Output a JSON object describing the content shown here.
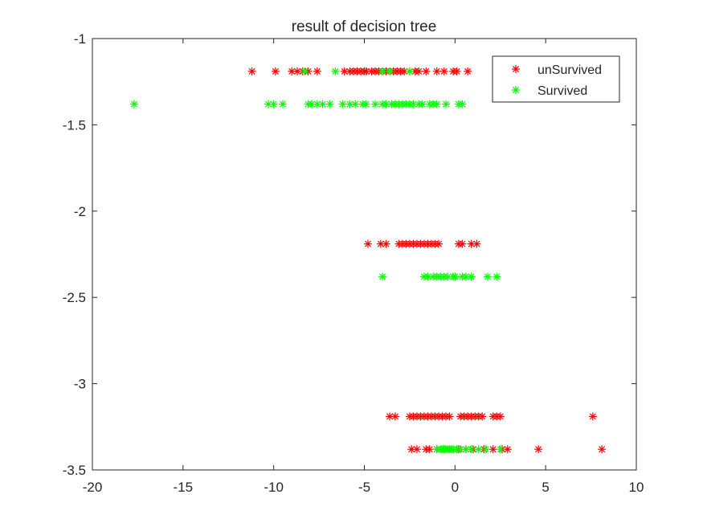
{
  "chart_data": {
    "type": "scatter",
    "title": "result of decision tree",
    "xlabel": "",
    "ylabel": "",
    "xlim": [
      -20,
      10
    ],
    "ylim": [
      -3.5,
      -1
    ],
    "xticks": [
      "-20",
      "-15",
      "-10",
      "-5",
      "0",
      "5",
      "10"
    ],
    "yticks": [
      "-1",
      "-1.5",
      "-2",
      "-2.5",
      "-3",
      "-3.5"
    ],
    "grid": false,
    "legend_position": "top-right",
    "marker": "asterisk",
    "series": [
      {
        "name": "unSurvived",
        "color": "#ff0000",
        "points": [
          [
            -11.2,
            -1.19
          ],
          [
            -9.9,
            -1.19
          ],
          [
            -9.0,
            -1.19
          ],
          [
            -8.7,
            -1.19
          ],
          [
            -8.4,
            -1.19
          ],
          [
            -8.1,
            -1.19
          ],
          [
            -7.6,
            -1.19
          ],
          [
            -6.1,
            -1.19
          ],
          [
            -5.8,
            -1.19
          ],
          [
            -5.6,
            -1.19
          ],
          [
            -5.4,
            -1.19
          ],
          [
            -5.2,
            -1.19
          ],
          [
            -5.0,
            -1.19
          ],
          [
            -4.9,
            -1.19
          ],
          [
            -4.6,
            -1.19
          ],
          [
            -4.4,
            -1.19
          ],
          [
            -4.2,
            -1.19
          ],
          [
            -4.0,
            -1.19
          ],
          [
            -3.8,
            -1.19
          ],
          [
            -3.6,
            -1.19
          ],
          [
            -3.4,
            -1.19
          ],
          [
            -3.2,
            -1.19
          ],
          [
            -3.0,
            -1.19
          ],
          [
            -2.8,
            -1.19
          ],
          [
            -2.5,
            -1.19
          ],
          [
            -2.2,
            -1.19
          ],
          [
            -2.0,
            -1.19
          ],
          [
            -1.6,
            -1.19
          ],
          [
            -1.0,
            -1.19
          ],
          [
            -0.6,
            -1.19
          ],
          [
            -0.1,
            -1.19
          ],
          [
            0.1,
            -1.19
          ],
          [
            0.7,
            -1.19
          ],
          [
            -4.8,
            -2.19
          ],
          [
            -4.1,
            -2.19
          ],
          [
            -3.8,
            -2.19
          ],
          [
            -3.1,
            -2.19
          ],
          [
            -2.9,
            -2.19
          ],
          [
            -2.7,
            -2.19
          ],
          [
            -2.5,
            -2.19
          ],
          [
            -2.3,
            -2.19
          ],
          [
            -2.1,
            -2.19
          ],
          [
            -1.9,
            -2.19
          ],
          [
            -1.7,
            -2.19
          ],
          [
            -1.5,
            -2.19
          ],
          [
            -1.3,
            -2.19
          ],
          [
            -1.1,
            -2.19
          ],
          [
            -0.9,
            -2.19
          ],
          [
            0.2,
            -2.19
          ],
          [
            0.4,
            -2.19
          ],
          [
            0.9,
            -2.19
          ],
          [
            1.2,
            -2.19
          ],
          [
            -3.6,
            -3.19
          ],
          [
            -3.3,
            -3.19
          ],
          [
            -2.5,
            -3.19
          ],
          [
            -2.3,
            -3.19
          ],
          [
            -2.1,
            -3.19
          ],
          [
            -1.9,
            -3.19
          ],
          [
            -1.7,
            -3.19
          ],
          [
            -1.5,
            -3.19
          ],
          [
            -1.3,
            -3.19
          ],
          [
            -1.1,
            -3.19
          ],
          [
            -0.9,
            -3.19
          ],
          [
            -0.7,
            -3.19
          ],
          [
            -0.5,
            -3.19
          ],
          [
            -0.3,
            -3.19
          ],
          [
            0.3,
            -3.19
          ],
          [
            0.5,
            -3.19
          ],
          [
            0.7,
            -3.19
          ],
          [
            0.9,
            -3.19
          ],
          [
            1.1,
            -3.19
          ],
          [
            1.3,
            -3.19
          ],
          [
            1.5,
            -3.19
          ],
          [
            2.1,
            -3.19
          ],
          [
            2.3,
            -3.19
          ],
          [
            2.5,
            -3.19
          ],
          [
            7.6,
            -3.19
          ],
          [
            -2.4,
            -3.38
          ],
          [
            -2.1,
            -3.38
          ],
          [
            -1.6,
            -3.38
          ],
          [
            -1.4,
            -3.38
          ],
          [
            -1.0,
            -3.38
          ],
          [
            -0.6,
            -3.38
          ],
          [
            0.2,
            -3.38
          ],
          [
            0.6,
            -3.38
          ],
          [
            1.0,
            -3.38
          ],
          [
            1.6,
            -3.38
          ],
          [
            2.1,
            -3.38
          ],
          [
            2.6,
            -3.38
          ],
          [
            2.9,
            -3.38
          ],
          [
            4.6,
            -3.38
          ],
          [
            8.1,
            -3.38
          ]
        ]
      },
      {
        "name": "Survived",
        "color": "#00ff00",
        "points": [
          [
            -8.3,
            -1.19
          ],
          [
            -6.6,
            -1.19
          ],
          [
            -4.0,
            -1.19
          ],
          [
            -3.6,
            -1.19
          ],
          [
            -2.5,
            -1.19
          ],
          [
            -17.7,
            -1.38
          ],
          [
            -10.3,
            -1.38
          ],
          [
            -10.0,
            -1.38
          ],
          [
            -9.5,
            -1.38
          ],
          [
            -8.1,
            -1.38
          ],
          [
            -7.9,
            -1.38
          ],
          [
            -7.6,
            -1.38
          ],
          [
            -7.3,
            -1.38
          ],
          [
            -6.9,
            -1.38
          ],
          [
            -6.2,
            -1.38
          ],
          [
            -5.8,
            -1.38
          ],
          [
            -5.5,
            -1.38
          ],
          [
            -5.1,
            -1.38
          ],
          [
            -4.9,
            -1.38
          ],
          [
            -4.4,
            -1.38
          ],
          [
            -4.0,
            -1.38
          ],
          [
            -3.8,
            -1.38
          ],
          [
            -3.5,
            -1.38
          ],
          [
            -3.3,
            -1.38
          ],
          [
            -3.1,
            -1.38
          ],
          [
            -2.9,
            -1.38
          ],
          [
            -2.7,
            -1.38
          ],
          [
            -2.5,
            -1.38
          ],
          [
            -2.3,
            -1.38
          ],
          [
            -2.0,
            -1.38
          ],
          [
            -1.8,
            -1.38
          ],
          [
            -1.4,
            -1.38
          ],
          [
            -1.2,
            -1.38
          ],
          [
            -1.0,
            -1.38
          ],
          [
            -0.5,
            -1.38
          ],
          [
            0.2,
            -1.38
          ],
          [
            0.4,
            -1.38
          ],
          [
            -4.0,
            -2.38
          ],
          [
            -1.7,
            -2.38
          ],
          [
            -1.5,
            -2.38
          ],
          [
            -1.2,
            -2.38
          ],
          [
            -1.0,
            -2.38
          ],
          [
            -0.8,
            -2.38
          ],
          [
            -0.6,
            -2.38
          ],
          [
            -0.4,
            -2.38
          ],
          [
            -0.1,
            -2.38
          ],
          [
            0.0,
            -2.38
          ],
          [
            0.4,
            -2.38
          ],
          [
            0.6,
            -2.38
          ],
          [
            0.9,
            -2.38
          ],
          [
            1.8,
            -2.38
          ],
          [
            2.3,
            -2.38
          ],
          [
            -1.0,
            -3.38
          ],
          [
            -0.8,
            -3.38
          ],
          [
            -0.7,
            -3.38
          ],
          [
            -0.6,
            -3.38
          ],
          [
            -0.5,
            -3.38
          ],
          [
            -0.4,
            -3.38
          ],
          [
            -0.3,
            -3.38
          ],
          [
            -0.2,
            -3.38
          ],
          [
            -0.1,
            -3.38
          ],
          [
            0.1,
            -3.38
          ],
          [
            0.3,
            -3.38
          ],
          [
            0.6,
            -3.38
          ],
          [
            0.9,
            -3.38
          ],
          [
            1.3,
            -3.38
          ],
          [
            1.7,
            -3.38
          ],
          [
            2.5,
            -3.38
          ]
        ]
      }
    ]
  }
}
